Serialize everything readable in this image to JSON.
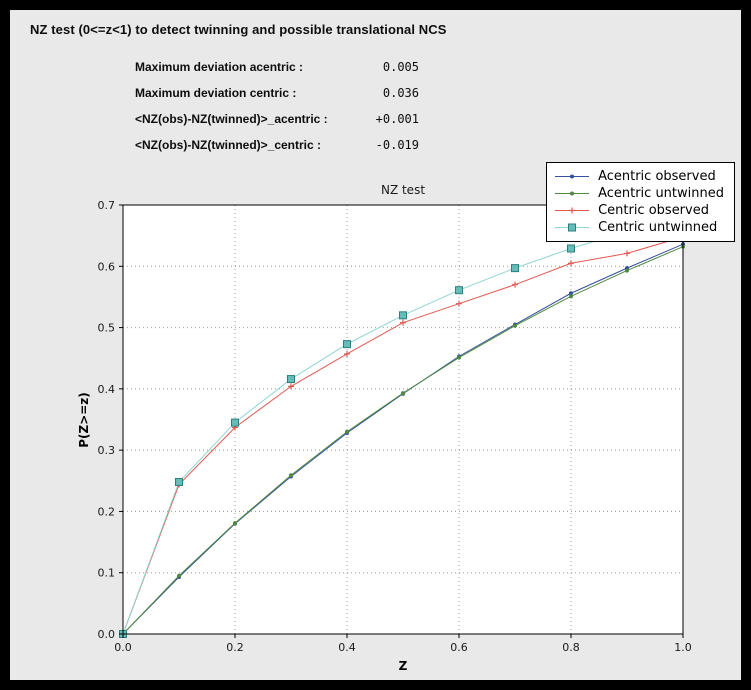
{
  "window": {
    "frame_color": "#000000",
    "panel_color": "#e9e9e9"
  },
  "header": {
    "title": "NZ test (0<=z<1) to detect twinning and possible translational NCS"
  },
  "stats": [
    {
      "label": "Maximum deviation acentric :",
      "value": "0.005"
    },
    {
      "label": "Maximum deviation centric :",
      "value": "0.036"
    },
    {
      "label": "<NZ(obs)-NZ(twinned)>_acentric :",
      "value": "+0.001"
    },
    {
      "label": "<NZ(obs)-NZ(twinned)>_centric :",
      "value": "-0.019"
    }
  ],
  "chart_data": {
    "type": "line",
    "title": "NZ test",
    "xlabel": "Z",
    "ylabel": "P(Z>=z)",
    "xlim": [
      0.0,
      1.0
    ],
    "ylim": [
      0.0,
      0.7
    ],
    "xticks": [
      0.0,
      0.2,
      0.4,
      0.6,
      0.8,
      1.0
    ],
    "yticks": [
      0.0,
      0.1,
      0.2,
      0.3,
      0.4,
      0.5,
      0.6,
      0.7
    ],
    "grid": true,
    "grid_color": "#999999",
    "legend_position": "top-right",
    "x": [
      0.0,
      0.1,
      0.2,
      0.3,
      0.4,
      0.5,
      0.6,
      0.7,
      0.8,
      0.9,
      1.0
    ],
    "series": [
      {
        "name": "Acentric observed",
        "color": "#33509e",
        "marker": "dot",
        "values": [
          0.0,
          0.093,
          0.18,
          0.257,
          0.328,
          0.392,
          0.453,
          0.505,
          0.556,
          0.597,
          0.636
        ]
      },
      {
        "name": "Acentric untwinned",
        "color": "#4f8a3f",
        "marker": "dot",
        "values": [
          0.0,
          0.095,
          0.181,
          0.259,
          0.33,
          0.393,
          0.451,
          0.503,
          0.551,
          0.593,
          0.632
        ]
      },
      {
        "name": "Centric observed",
        "color": "#df5950",
        "marker": "plus",
        "values": [
          0.0,
          0.244,
          0.337,
          0.404,
          0.457,
          0.508,
          0.539,
          0.57,
          0.605,
          0.621,
          0.648
        ]
      },
      {
        "name": "Centric untwinned",
        "color": "#8fd6d2",
        "marker": "square",
        "marker_fill": "#63bdb8",
        "marker_edge": "#2e7f7b",
        "values": [
          0.0,
          0.248,
          0.345,
          0.416,
          0.473,
          0.52,
          0.561,
          0.597,
          0.629,
          0.657,
          0.683
        ]
      }
    ]
  }
}
